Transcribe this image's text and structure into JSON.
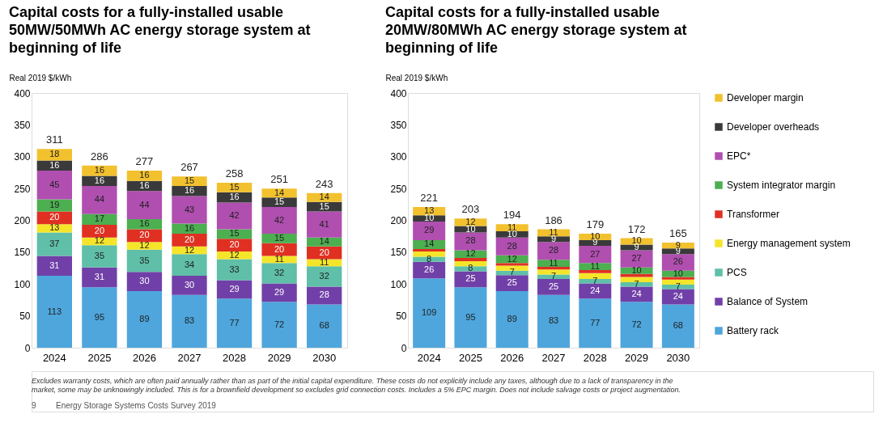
{
  "chart_data": [
    {
      "type": "bar",
      "title": "Capital costs for a fully-installed usable 50MW/50MWh AC energy storage system at beginning of life",
      "ylabel": "Real 2019 $/kWh",
      "stacked": true,
      "data_labels": true,
      "grid": false,
      "categories": [
        "2024",
        "2025",
        "2026",
        "2027",
        "2028",
        "2029",
        "2030"
      ],
      "ylim": [
        0,
        400
      ],
      "yticks": [
        0,
        50,
        100,
        150,
        200,
        250,
        300,
        350,
        400
      ],
      "totals": [
        "311",
        "286",
        "277",
        "267",
        "258",
        "251",
        "243"
      ],
      "series": [
        {
          "color": "#4ea6dc",
          "values": [
            113,
            95,
            89,
            83,
            77,
            72,
            68
          ]
        },
        {
          "color": "#7040a8",
          "values": [
            31,
            31,
            30,
            30,
            29,
            29,
            28
          ]
        },
        {
          "color": "#5fbfa8",
          "values": [
            37,
            35,
            35,
            34,
            33,
            32,
            32
          ]
        },
        {
          "color": "#f5e52a",
          "values": [
            13,
            12,
            12,
            12,
            12,
            11,
            11
          ]
        },
        {
          "color": "#e03022",
          "values": [
            20,
            20,
            20,
            20,
            20,
            20,
            20
          ]
        },
        {
          "color": "#4caf50",
          "values": [
            19,
            17,
            16,
            16,
            15,
            15,
            14
          ]
        },
        {
          "color": "#b04fb0",
          "values": [
            45,
            44,
            44,
            43,
            42,
            42,
            41
          ]
        },
        {
          "color": "#3a3a3a",
          "values": [
            16,
            16,
            16,
            16,
            16,
            15,
            15
          ]
        },
        {
          "color": "#f2c12e",
          "values": [
            18,
            16,
            16,
            15,
            15,
            14,
            14
          ]
        }
      ],
      "annotations": [
        "Excludes warranty costs, which are often paid annually rather than as part of the initial capital expenditure. These costs do not explicitly include any taxes, although due to a lack of transparency in the market, some may be unknowingly included. This is for a brownfield development so excludes grid connection costs. Includes a 5% EPC margin. Does not include salvage costs or project augmentation.",
        "9",
        "Energy Storage Systems Costs Survey 2019"
      ]
    },
    {
      "type": "bar",
      "title": "Capital costs for a fully-installed usable 20MW/80MWh AC energy storage system at beginning of life",
      "ylabel": "Real 2019 $/kWh",
      "stacked": true,
      "legend": "right",
      "grid": false,
      "categories": [
        "2024",
        "2025",
        "2026",
        "2027",
        "2028",
        "2029",
        "2030"
      ],
      "ylim": [
        0,
        400
      ],
      "yticks": [
        0,
        50,
        100,
        150,
        200,
        250,
        300,
        350,
        400
      ],
      "totals": [
        "221",
        "203",
        "194",
        "186",
        "179",
        "172",
        "165"
      ],
      "series": [
        {
          "name": "Battery rack",
          "color": "#4ea6dc",
          "values": [
            109,
            95,
            89,
            83,
            77,
            72,
            68
          ],
          "value_labels": [
            "109",
            "95",
            "89",
            "83",
            "77",
            "72",
            "68"
          ]
        },
        {
          "name": "Balance of System",
          "color": "#7040a8",
          "values": [
            26,
            25,
            25,
            25,
            24,
            24,
            24
          ],
          "value_labels": [
            "26",
            "25",
            "25",
            "25",
            "24",
            "24",
            "24"
          ]
        },
        {
          "name": "PCS",
          "color": "#5fbfa8",
          "values": [
            8,
            8,
            7,
            7,
            7,
            7,
            7
          ],
          "value_labels": [
            "8",
            "8",
            "7",
            "7",
            "7",
            "7",
            "7"
          ]
        },
        {
          "name": "Energy management system",
          "color": "#f5e52a",
          "values": [
            8,
            8,
            8,
            8,
            9,
            8,
            8
          ],
          "value_labels": [
            null,
            null,
            null,
            null,
            null,
            null,
            null
          ]
        },
        {
          "name": "Transformer",
          "color": "#e03022",
          "values": [
            4,
            5,
            4,
            4,
            5,
            5,
            4
          ],
          "value_labels": [
            null,
            null,
            null,
            null,
            null,
            null,
            null
          ]
        },
        {
          "name": "System integrator margin",
          "color": "#4caf50",
          "values": [
            14,
            12,
            12,
            11,
            11,
            10,
            10
          ],
          "value_labels": [
            "14",
            "12",
            "12",
            "11",
            "11",
            "10",
            "10"
          ]
        },
        {
          "name": "EPC*",
          "color": "#b04fb0",
          "values": [
            29,
            28,
            28,
            28,
            27,
            27,
            26
          ],
          "value_labels": [
            "29",
            "28",
            "28",
            "28",
            "27",
            "27",
            "26"
          ]
        },
        {
          "name": "Developer overheads",
          "color": "#3a3a3a",
          "values": [
            10,
            10,
            10,
            9,
            9,
            9,
            9
          ],
          "value_labels": [
            "10",
            "10",
            "10",
            "9",
            "9",
            "9",
            "9"
          ]
        },
        {
          "name": "Developer margin",
          "color": "#f2c12e",
          "values": [
            13,
            12,
            11,
            11,
            10,
            10,
            9
          ],
          "value_labels": [
            "13",
            "12",
            "11",
            "11",
            "10",
            "10",
            "9"
          ]
        }
      ]
    }
  ]
}
